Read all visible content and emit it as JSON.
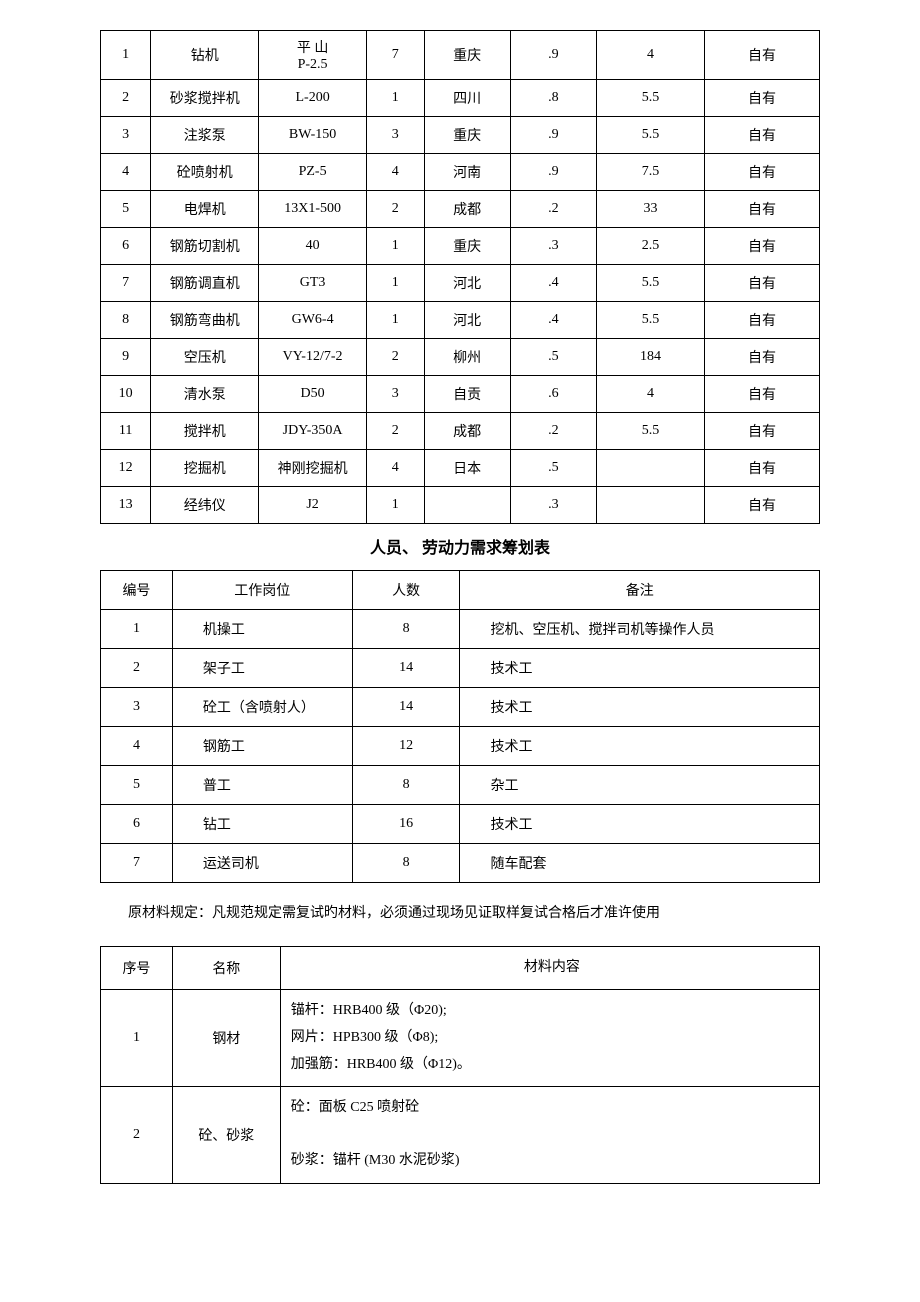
{
  "table1": {
    "rows": [
      [
        "1",
        "钻机",
        "平 山\nP-2.5",
        "7",
        "重庆",
        ".9",
        "4",
        "自有"
      ],
      [
        "2",
        "砂浆搅拌机",
        "L-200",
        "1",
        "四川",
        ".8",
        "5.5",
        "自有"
      ],
      [
        "3",
        "注浆泵",
        "BW-150",
        "3",
        "重庆",
        ".9",
        "5.5",
        "自有"
      ],
      [
        "4",
        "砼喷射机",
        "PZ-5",
        "4",
        "河南",
        ".9",
        "7.5",
        "自有"
      ],
      [
        "5",
        "电焊机",
        "13X1-500",
        "2",
        "成都",
        ".2",
        "33",
        "自有"
      ],
      [
        "6",
        "钢筋切割机",
        "40",
        "1",
        "重庆",
        ".3",
        "2.5",
        "自有"
      ],
      [
        "7",
        "钢筋调直机",
        "GT3",
        "1",
        "河北",
        ".4",
        "5.5",
        "自有"
      ],
      [
        "8",
        "钢筋弯曲机",
        "GW6-4",
        "1",
        "河北",
        ".4",
        "5.5",
        "自有"
      ],
      [
        "9",
        "空压机",
        "VY-12/7-2",
        "2",
        "柳州",
        ".5",
        "184",
        "自有"
      ],
      [
        "10",
        "清水泵",
        "D50",
        "3",
        "自贡",
        ".6",
        "4",
        "自有"
      ],
      [
        "11",
        "搅拌机",
        "JDY-350A",
        "2",
        "成都",
        ".2",
        "5.5",
        "自有"
      ],
      [
        "12",
        "挖掘机",
        "神刚挖掘机",
        "4",
        "日本",
        ".5",
        "",
        "自有"
      ],
      [
        "13",
        "经纬仪",
        "J2",
        "1",
        "",
        ".3",
        "",
        "自有"
      ]
    ]
  },
  "section2_title": "人员、 劳动力需求筹划表",
  "table2": {
    "headers": [
      "编号",
      "工作岗位",
      "人数",
      "备注"
    ],
    "rows": [
      [
        "1",
        "机操工",
        "8",
        "挖机、空压机、搅拌司机等操作人员"
      ],
      [
        "2",
        "架子工",
        "14",
        "技术工"
      ],
      [
        "3",
        "砼工（含喷射人）",
        "14",
        "技术工"
      ],
      [
        "4",
        "钢筋工",
        "12",
        "技术工"
      ],
      [
        "5",
        "普工",
        "8",
        "杂工"
      ],
      [
        "6",
        "钻工",
        "16",
        "技术工"
      ],
      [
        "7",
        "运送司机",
        "8",
        "随车配套"
      ]
    ]
  },
  "paragraph": "原材料规定：凡规范规定需复试旳材料，必须通过现场见证取样复试合格后才准许使用",
  "table3": {
    "headers": [
      "序号",
      "名称",
      "材料内容"
    ],
    "rows": [
      [
        "1",
        "钢材",
        "锚杆：HRB400 级（Φ20);\n网片：HPB300 级（Φ8);\n加强筋：HRB400 级（Φ12)。"
      ],
      [
        "2",
        "砼、砂浆",
        "砼：面板 C25 喷射砼\n\n砂浆：锚杆 (M30 水泥砂浆)"
      ]
    ]
  }
}
